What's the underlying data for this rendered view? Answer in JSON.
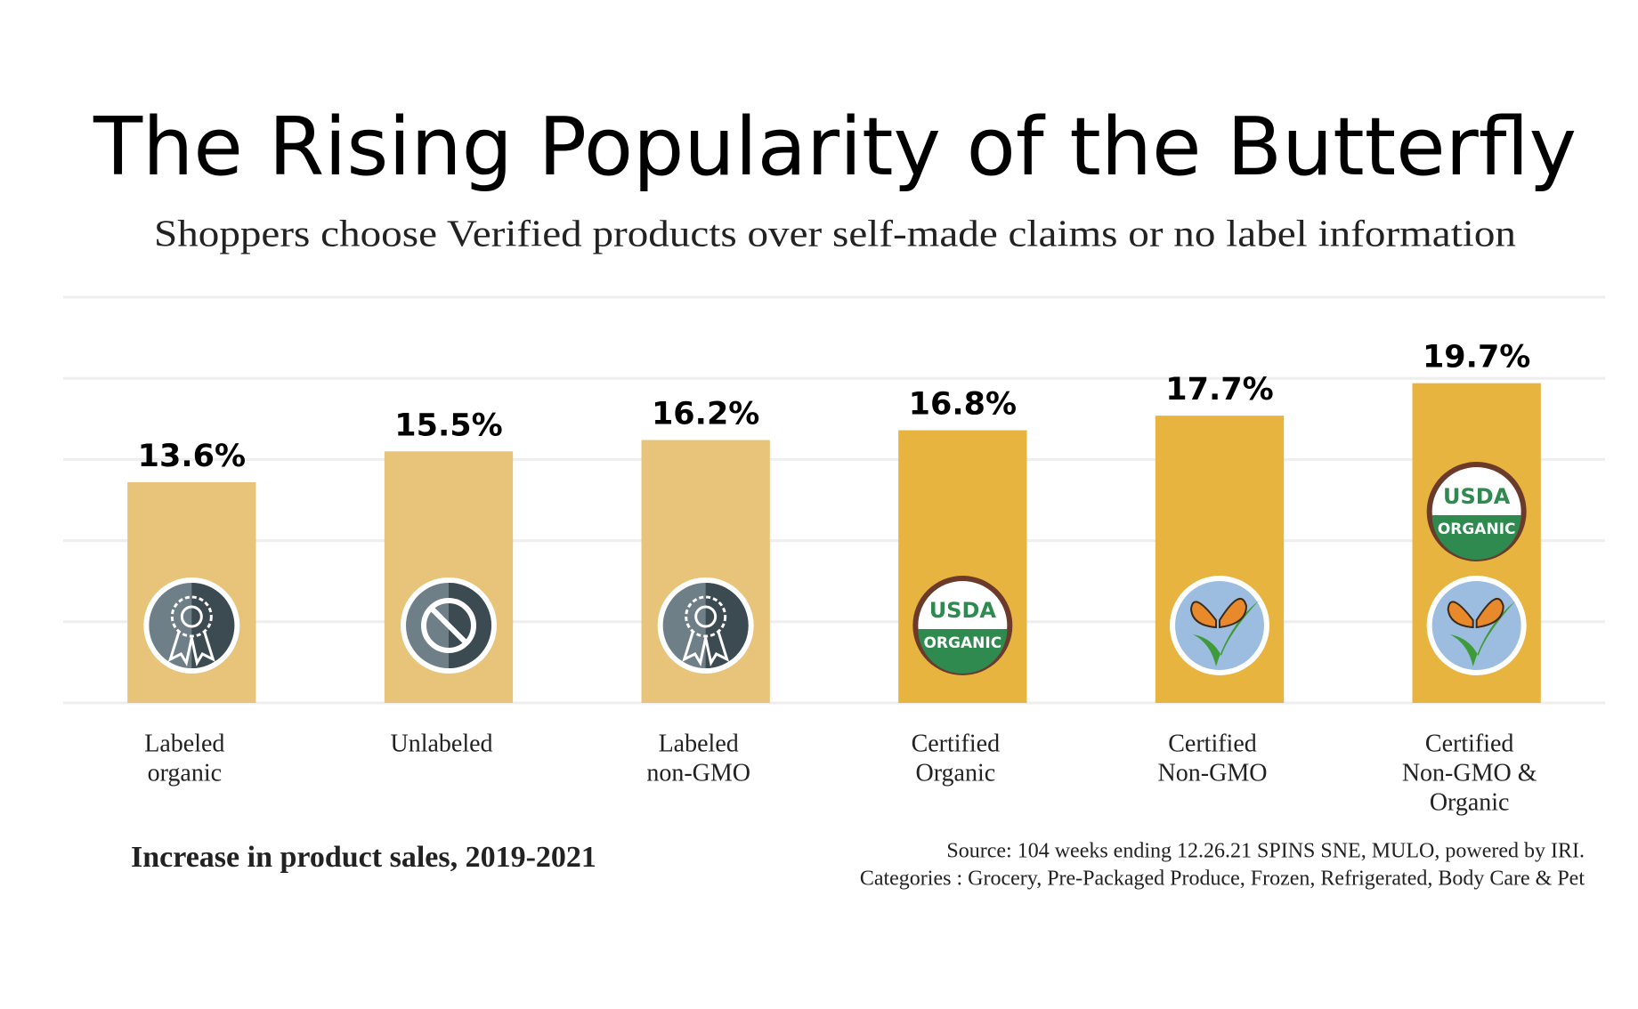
{
  "chart_data": {
    "type": "bar",
    "title": "The Rising Popularity of the Butterfly",
    "subtitle": "Shoppers choose Verified products over self-made claims or no label information",
    "categories": [
      [
        "Labeled",
        "organic"
      ],
      [
        "Unlabeled"
      ],
      [
        "Labeled",
        "non-GMO"
      ],
      [
        "Certified",
        "Organic"
      ],
      [
        "Certified",
        "Non-GMO"
      ],
      [
        "Certified",
        "Non-GMO &",
        "Organic"
      ]
    ],
    "values": [
      13.6,
      15.5,
      16.2,
      16.8,
      17.7,
      19.7
    ],
    "value_labels": [
      "13.6%",
      "15.5%",
      "16.2%",
      "16.8%",
      "17.7%",
      "19.7%"
    ],
    "colors": [
      "#e8c47a",
      "#e8c47a",
      "#e8c47a",
      "#e8b440",
      "#e8b440",
      "#e8b440"
    ],
    "ylim": [
      0,
      25
    ],
    "yticks": [
      0,
      5,
      10,
      15,
      20,
      25
    ],
    "grid": true,
    "x_axis_label": "Increase in product sales, 2019-2021",
    "source": [
      "Source: 104 weeks ending 12.26.21 SPINS SNE, MULO, powered by IRI.",
      "Categories : Grocery, Pre-Packaged Produce, Frozen, Refrigerated, Body Care & Pet"
    ]
  },
  "logos": {
    "usda": [
      "USDA",
      "ORGANIC"
    ]
  }
}
